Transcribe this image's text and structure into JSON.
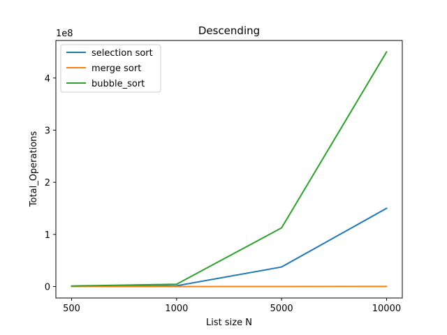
{
  "chart_data": {
    "type": "line",
    "title": "Descending",
    "xlabel": "List size N",
    "ylabel": "Total_Operations",
    "y_offset_text": "1e8",
    "categories": [
      "500",
      "1000",
      "5000",
      "10000"
    ],
    "ylim": [
      -0.22,
      4.72
    ],
    "y_ticks": [
      0,
      1,
      2,
      3,
      4
    ],
    "y_tick_labels": [
      "0",
      "1",
      "2",
      "3",
      "4"
    ],
    "y_unit_multiplier": 100000000,
    "grid": false,
    "legend_position": "upper-left",
    "series": [
      {
        "name": "selection sort",
        "color": "#1f77b4",
        "values": [
          0.00375,
          0.015,
          0.375,
          1.5
        ]
      },
      {
        "name": "merge sort",
        "color": "#ff7f0e",
        "values": [
          0.0001,
          0.0002,
          0.0012,
          0.0025
        ]
      },
      {
        "name": "bubble_sort",
        "color": "#2ca02c",
        "values": [
          0.0112,
          0.045,
          1.125,
          4.5
        ]
      }
    ]
  }
}
